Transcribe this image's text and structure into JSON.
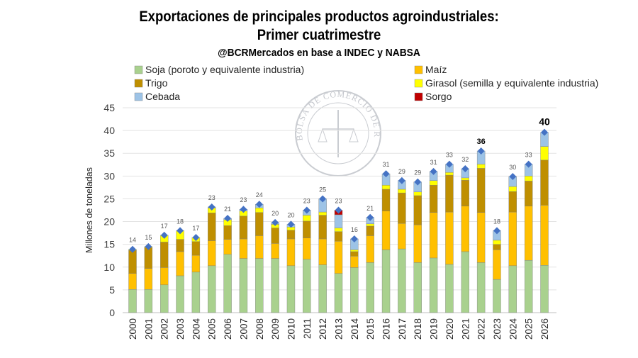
{
  "title_line1": "Exportaciones de principales productos agroindustriales:",
  "title_line2": "Primer cuatrimestre",
  "subtitle": "@BCRMercados en base a INDEC y NABSA",
  "watermark": "BOLSA DE COMERCIO DE ROSARIO",
  "chart_data": {
    "type": "bar",
    "stacked": true,
    "ylabel": "Millones de toneladas",
    "xlabel": "",
    "ylim": [
      0,
      45
    ],
    "yticks": [
      0,
      5,
      10,
      15,
      20,
      25,
      30,
      35,
      40,
      45
    ],
    "grid": true,
    "legend_position": "top",
    "categories": [
      "2000",
      "2001",
      "2002",
      "2003",
      "2004",
      "2005",
      "2006",
      "2007",
      "2008",
      "2009",
      "2010",
      "2011",
      "2012",
      "2013",
      "2014",
      "2015",
      "2016",
      "2017",
      "2018",
      "2019",
      "2020",
      "2021",
      "2022",
      "2023",
      "2024",
      "2025",
      "2026"
    ],
    "series": [
      {
        "name": "Soja (poroto y equivalente industria)",
        "color": "#A9D18E",
        "values": [
          5.1,
          5.1,
          6.1,
          8.1,
          8.9,
          10.3,
          12.8,
          11.9,
          11.9,
          11.9,
          10.3,
          11.7,
          10.5,
          8.6,
          9.9,
          11.0,
          13.8,
          14.0,
          11.0,
          12.0,
          10.6,
          13.4,
          11.0,
          7.3,
          10.3,
          11.5,
          10.4
        ]
      },
      {
        "name": "Maíz",
        "color": "#FFC000",
        "values": [
          3.5,
          4.6,
          3.8,
          5.3,
          3.7,
          5.5,
          3.3,
          4.3,
          5.0,
          3.3,
          5.9,
          4.7,
          5.7,
          7.1,
          2.5,
          5.9,
          8.5,
          5.6,
          8.3,
          10.0,
          11.5,
          10.0,
          11.0,
          6.5,
          11.8,
          11.9,
          13.2
        ]
      },
      {
        "name": "Trigo",
        "color": "#BF8F00",
        "values": [
          5.1,
          4.6,
          5.6,
          2.7,
          3.0,
          6.1,
          3.0,
          5.0,
          5.1,
          3.4,
          1.9,
          3.7,
          5.2,
          2.1,
          1.0,
          2.1,
          4.8,
          6.7,
          6.4,
          6.0,
          8.1,
          5.7,
          9.7,
          1.2,
          4.5,
          5.5,
          9.9
        ]
      },
      {
        "name": "Girasol (semilla y equivalente industria)",
        "color": "#FFFF00",
        "values": [
          0.2,
          0.2,
          1.5,
          1.9,
          0.9,
          1.1,
          1.3,
          1.1,
          1.0,
          0.8,
          0.7,
          1.3,
          0.7,
          0.8,
          0.4,
          0.5,
          0.9,
          0.8,
          0.8,
          1.0,
          0.6,
          0.5,
          0.9,
          0.9,
          1.1,
          1.1,
          3.0
        ]
      },
      {
        "name": "Cebada",
        "color": "#9DC3E6",
        "values": [
          0,
          0,
          0,
          0,
          0,
          0.2,
          0.3,
          0.4,
          0.8,
          0.4,
          0.6,
          1.1,
          2.9,
          2.9,
          2.4,
          1.4,
          2.5,
          1.9,
          2.2,
          2.0,
          1.8,
          2.0,
          2.9,
          2.1,
          2.2,
          2.6,
          3.1
        ]
      },
      {
        "name": "Sorgo",
        "color": "#C00000",
        "values": [
          0,
          0,
          0,
          0,
          0,
          0,
          0,
          0,
          0,
          0,
          0,
          0,
          0,
          1.0,
          0,
          0,
          0,
          0,
          0,
          0,
          0,
          0,
          0,
          0,
          0,
          0,
          0
        ]
      }
    ],
    "total_labels": [
      "14",
      "15",
      "17",
      "18",
      "17",
      "23",
      "21",
      "23",
      "24",
      "20",
      "20",
      "23",
      "25",
      "23",
      "16",
      "21",
      "31",
      "29",
      "29",
      "31",
      "33",
      "32",
      "36",
      "18",
      "30",
      "33",
      "40"
    ],
    "bold_labels": [
      "2022",
      "2026"
    ],
    "total_marker_color": "#4472C4"
  }
}
